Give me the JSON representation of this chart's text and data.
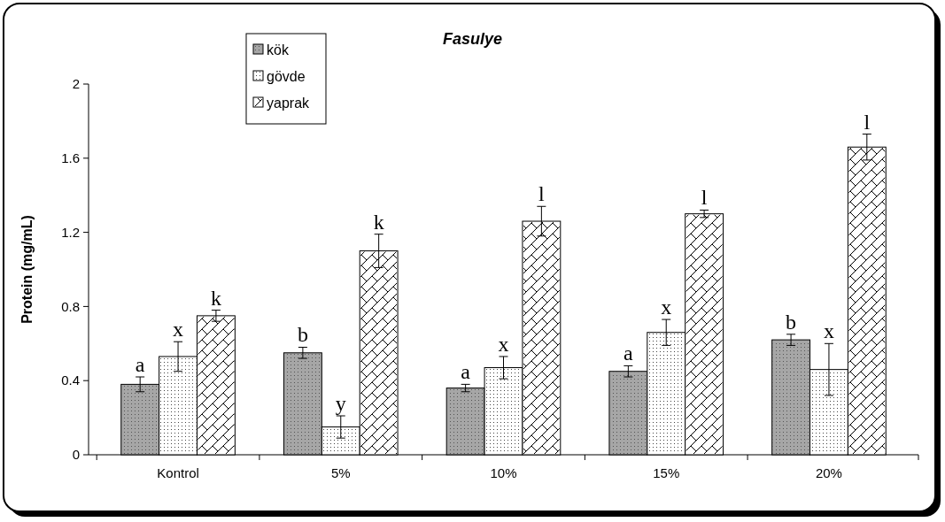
{
  "chart_data": {
    "type": "bar",
    "title": "Fasulye",
    "ylabel": "Protein (mg/mL)",
    "categories": [
      "Kontrol",
      "5%",
      "10%",
      "15%",
      "20%"
    ],
    "series": [
      {
        "name": "kök",
        "color": "#a6a6a6",
        "values": [
          0.38,
          0.55,
          0.36,
          0.45,
          0.62
        ],
        "errors": [
          0.04,
          0.03,
          0.02,
          0.03,
          0.03
        ]
      },
      {
        "name": "gövde",
        "color": "#ffffff",
        "values": [
          0.53,
          0.15,
          0.47,
          0.66,
          0.46
        ],
        "errors": [
          0.08,
          0.06,
          0.06,
          0.07,
          0.14
        ]
      },
      {
        "name": "yaprak",
        "color": "#ffffff",
        "values": [
          0.75,
          1.1,
          1.26,
          1.3,
          1.66
        ],
        "errors": [
          0.03,
          0.09,
          0.08,
          0.02,
          0.07
        ]
      }
    ],
    "ylim": [
      0,
      2
    ],
    "yticks": [
      0,
      0.4,
      0.8,
      1.2,
      1.6,
      2
    ],
    "legend": "top left",
    "annotations": [
      "a",
      "x",
      "k",
      "b",
      "y",
      "k",
      "a",
      "x",
      "l",
      "a",
      "x",
      "l",
      "b",
      "x",
      "l"
    ]
  }
}
